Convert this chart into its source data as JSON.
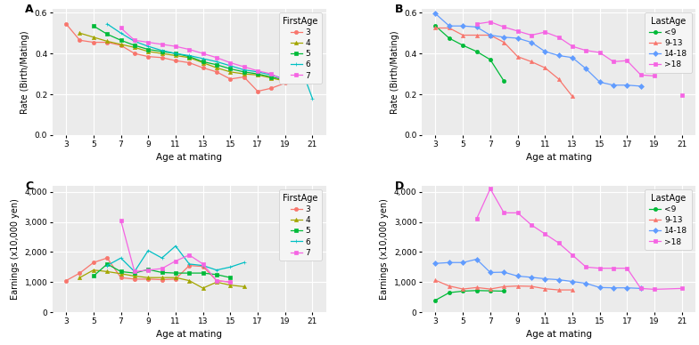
{
  "panel_A": {
    "title": "A",
    "ylabel": "Rate (Birth/Mating)",
    "xlabel": "Age at mating",
    "legend_title": "FirstAge",
    "series": {
      "3": {
        "color": "#F8766D",
        "marker": "o",
        "x": [
          3,
          4,
          5,
          6,
          7,
          8,
          9,
          10,
          11,
          12,
          13,
          14,
          15,
          16,
          17,
          18,
          19,
          20
        ],
        "y": [
          0.545,
          0.465,
          0.455,
          0.455,
          0.44,
          0.4,
          0.385,
          0.38,
          0.365,
          0.355,
          0.33,
          0.31,
          0.275,
          0.285,
          0.215,
          0.23,
          0.255,
          null
        ]
      },
      "4": {
        "color": "#A3A500",
        "marker": "^",
        "x": [
          4,
          5,
          6,
          7,
          8,
          9,
          10,
          11,
          12,
          13,
          14,
          15,
          16,
          17,
          18,
          19,
          20
        ],
        "y": [
          0.5,
          0.48,
          0.46,
          0.445,
          0.43,
          0.41,
          0.4,
          0.39,
          0.38,
          0.355,
          0.33,
          0.31,
          0.3,
          0.295,
          0.28,
          0.265,
          null
        ]
      },
      "5": {
        "color": "#00BA38",
        "marker": "s",
        "x": [
          5,
          6,
          7,
          8,
          9,
          10,
          11,
          12,
          13,
          14,
          15,
          16,
          17,
          18,
          19
        ],
        "y": [
          0.535,
          0.495,
          0.465,
          0.44,
          0.42,
          0.41,
          0.4,
          0.385,
          0.36,
          0.345,
          0.325,
          0.31,
          0.3,
          0.285,
          0.27
        ]
      },
      "6": {
        "color": "#00BFC4",
        "marker": "+",
        "x": [
          6,
          7,
          8,
          9,
          10,
          11,
          12,
          13,
          14,
          15,
          16,
          17,
          18,
          19,
          20,
          21
        ],
        "y": [
          0.545,
          0.5,
          0.46,
          0.435,
          0.415,
          0.4,
          0.39,
          0.375,
          0.36,
          0.34,
          0.32,
          0.31,
          0.295,
          0.275,
          0.36,
          0.18
        ]
      },
      "7": {
        "color": "#F564E3",
        "marker": "s",
        "x": [
          7,
          8,
          9,
          10,
          11,
          12,
          13,
          14,
          15,
          16,
          17,
          18,
          19
        ],
        "y": [
          0.525,
          0.465,
          0.455,
          0.445,
          0.435,
          0.42,
          0.4,
          0.38,
          0.355,
          0.335,
          0.315,
          0.3,
          0.265
        ]
      }
    },
    "ylim": [
      0.0,
      0.62
    ],
    "yticks": [
      0.0,
      0.2,
      0.4,
      0.6
    ],
    "xticks": [
      3,
      5,
      7,
      9,
      11,
      13,
      15,
      17,
      19,
      21
    ]
  },
  "panel_B": {
    "title": "B",
    "ylabel": "Rate (Birth/Mating)",
    "xlabel": "Age at mating",
    "legend_title": "LastAge",
    "series": {
      "<9": {
        "color": "#00BA38",
        "marker": "o",
        "x": [
          3,
          4,
          5,
          6,
          7,
          8
        ],
        "y": [
          0.535,
          0.475,
          0.44,
          0.41,
          0.37,
          0.265
        ]
      },
      "9-13": {
        "color": "#F8766D",
        "marker": "^",
        "x": [
          3,
          4,
          5,
          6,
          7,
          8,
          9,
          10,
          11,
          12,
          13
        ],
        "y": [
          0.525,
          0.525,
          0.49,
          0.49,
          0.49,
          0.455,
          0.385,
          0.36,
          0.33,
          0.275,
          0.19
        ]
      },
      "14-18": {
        "color": "#619CFF",
        "marker": "D",
        "x": [
          3,
          4,
          5,
          6,
          7,
          8,
          9,
          10,
          11,
          12,
          13,
          14,
          15,
          16,
          17,
          18
        ],
        "y": [
          0.595,
          0.535,
          0.535,
          0.53,
          0.49,
          0.48,
          0.475,
          0.455,
          0.41,
          0.39,
          0.38,
          0.325,
          0.26,
          0.245,
          0.245,
          0.24
        ]
      },
      ">18": {
        "color": "#F564E3",
        "marker": "s",
        "x": [
          6,
          7,
          8,
          9,
          10,
          11,
          12,
          13,
          14,
          15,
          16,
          17,
          18,
          19,
          20,
          21
        ],
        "y": [
          0.545,
          0.555,
          0.53,
          0.51,
          0.49,
          0.505,
          0.48,
          0.435,
          0.415,
          0.405,
          0.36,
          0.365,
          0.295,
          0.29,
          null,
          0.195
        ]
      }
    },
    "ylim": [
      0.0,
      0.62
    ],
    "yticks": [
      0.0,
      0.2,
      0.4,
      0.6
    ],
    "xticks": [
      3,
      5,
      7,
      9,
      11,
      13,
      15,
      17,
      19,
      21
    ]
  },
  "panel_C": {
    "title": "C",
    "ylabel": "Earnings (x10,000 yen)",
    "xlabel": "Age at mating",
    "legend_title": "FirstAge",
    "series": {
      "3": {
        "color": "#F8766D",
        "marker": "o",
        "x": [
          3,
          4,
          5,
          6,
          7,
          8,
          9,
          10,
          11,
          12,
          13,
          14,
          15
        ],
        "y": [
          1050,
          1300,
          1650,
          1800,
          1150,
          1100,
          1100,
          1080,
          1100,
          1550,
          1520,
          1050,
          1000
        ]
      },
      "4": {
        "color": "#A3A500",
        "marker": "^",
        "x": [
          4,
          5,
          6,
          7,
          8,
          9,
          10,
          11,
          12,
          13,
          14,
          15,
          16
        ],
        "y": [
          1150,
          1400,
          1350,
          1280,
          1200,
          1150,
          1150,
          1150,
          1050,
          800,
          1000,
          900,
          850
        ]
      },
      "5": {
        "color": "#00BA38",
        "marker": "s",
        "x": [
          5,
          6,
          7,
          8,
          9,
          10,
          11,
          12,
          13,
          14,
          15
        ],
        "y": [
          1200,
          1600,
          1350,
          1300,
          1420,
          1320,
          1300,
          1300,
          1300,
          1250,
          1150
        ]
      },
      "6": {
        "color": "#00BFC4",
        "marker": "+",
        "x": [
          6,
          7,
          8,
          9,
          10,
          11,
          12,
          13,
          14,
          15,
          16
        ],
        "y": [
          1550,
          1800,
          1350,
          2050,
          1800,
          2200,
          1600,
          1550,
          1400,
          1500,
          1650
        ]
      },
      "7": {
        "color": "#F564E3",
        "marker": "s",
        "x": [
          7,
          8,
          9,
          10,
          11,
          12,
          13,
          14,
          15
        ],
        "y": [
          3050,
          1350,
          1400,
          1450,
          1700,
          1900,
          1600,
          1050,
          1000
        ]
      }
    },
    "ylim": [
      0,
      4200
    ],
    "yticks": [
      0,
      1000,
      2000,
      3000,
      4000
    ],
    "xticks": [
      3,
      5,
      7,
      9,
      11,
      13,
      15,
      17,
      19,
      21
    ]
  },
  "panel_D": {
    "title": "D",
    "ylabel": "Earnings (x10,000 yen)",
    "xlabel": "Age at mating",
    "legend_title": "LastAge",
    "series": {
      "<9": {
        "color": "#00BA38",
        "marker": "o",
        "x": [
          3,
          4,
          5,
          6,
          7,
          8
        ],
        "y": [
          400,
          650,
          700,
          720,
          710,
          700
        ]
      },
      "9-13": {
        "color": "#F8766D",
        "marker": "^",
        "x": [
          3,
          4,
          5,
          6,
          7,
          8,
          9,
          10,
          11,
          12,
          13
        ],
        "y": [
          1060,
          870,
          770,
          820,
          770,
          850,
          870,
          860,
          780,
          740,
          740
        ]
      },
      "14-18": {
        "color": "#619CFF",
        "marker": "D",
        "x": [
          3,
          4,
          5,
          6,
          7,
          8,
          9,
          10,
          11,
          12,
          13,
          14,
          15,
          16,
          17,
          18
        ],
        "y": [
          1620,
          1650,
          1650,
          1760,
          1320,
          1330,
          1200,
          1160,
          1110,
          1080,
          1020,
          960,
          820,
          810,
          810,
          790
        ]
      },
      ">18": {
        "color": "#F564E3",
        "marker": "s",
        "x": [
          5,
          6,
          7,
          8,
          9,
          10,
          11,
          12,
          13,
          14,
          15,
          16,
          17,
          18,
          19,
          21
        ],
        "y": [
          null,
          3100,
          4100,
          3300,
          3300,
          2900,
          2600,
          2300,
          1900,
          1500,
          1460,
          1460,
          1460,
          790,
          760,
          790
        ]
      }
    },
    "ylim": [
      0,
      4200
    ],
    "yticks": [
      0,
      1000,
      2000,
      3000,
      4000
    ],
    "xticks": [
      3,
      5,
      7,
      9,
      11,
      13,
      15,
      17,
      19,
      21
    ]
  },
  "bg_color": "#EBEBEB",
  "grid_color": "white",
  "marker_size": 3,
  "linewidth": 0.9
}
